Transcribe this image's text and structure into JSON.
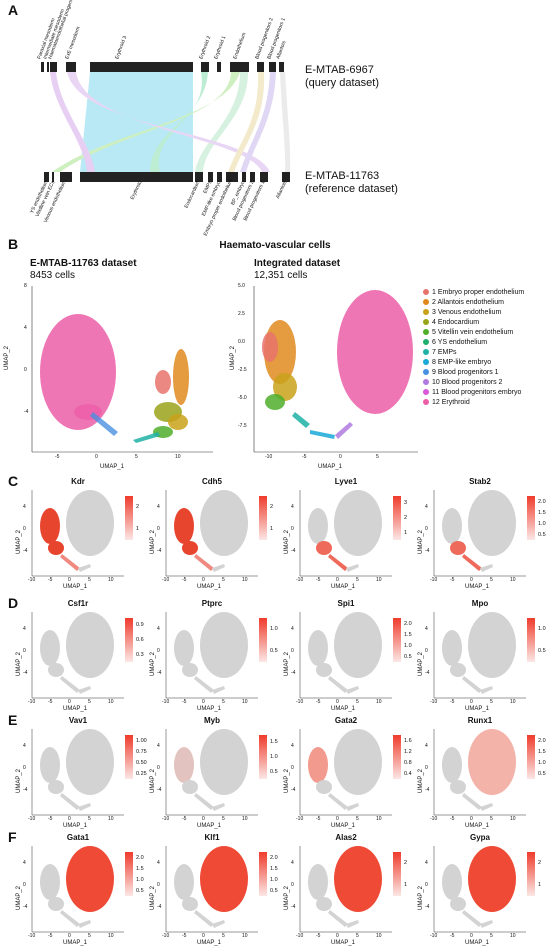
{
  "panelA": {
    "letter": "A",
    "query_label": "E-MTAB-6967\n(query dataset)",
    "query_line1": "E-MTAB-6967",
    "query_line2": "(query dataset)",
    "ref_line1": "E-MTAB-11763",
    "ref_line2": "(reference dataset)",
    "top_labels": [
      "Paraxial mesoderm",
      "Intermediate mesoderm",
      "Haematoendothelial progenitors",
      "ExE mesoderm",
      "Erythroid 3",
      "Erythroid 2",
      "Erythroid 1",
      "Endothelium",
      "Blood progenitors 2",
      "Blood progenitors 1",
      "Allantois"
    ],
    "bottom_labels": [
      "YS endothelium",
      "Vitelline vein ECs",
      "Venous endothelium",
      "Erythroid",
      "Endocardium",
      "EMPs",
      "EMP-like embryo",
      "Embryo proper endothelium",
      "BP_embryo",
      "Blood progenitors 2",
      "Blood progenitors 1",
      "Allantois"
    ]
  },
  "panelB": {
    "letter": "B",
    "title": "Haemato-vascular cells",
    "left_title": "E-MTAB-11763 dataset",
    "left_sub": "8453 cells",
    "right_title": "Integrated dataset",
    "right_sub": "12,351 cells",
    "xlabel": "UMAP_1",
    "ylabel": "UMAP_2",
    "legend": [
      {
        "label": "1 Embryo proper endothelium",
        "color": "#e8736c"
      },
      {
        "label": "2 Allantois endothelium",
        "color": "#e08a1e"
      },
      {
        "label": "3 Venous endothelium",
        "color": "#c9a21a"
      },
      {
        "label": "4 Endocardium",
        "color": "#9aa31a"
      },
      {
        "label": "5 Vitellin vein endothelium",
        "color": "#4fae2a"
      },
      {
        "label": "6 YS endothelium",
        "color": "#1fae6a"
      },
      {
        "label": "7 EMPs",
        "color": "#1fb2a6"
      },
      {
        "label": "8 EMP-like embryo",
        "color": "#1aa8d8"
      },
      {
        "label": "9 Blood progenitors 1",
        "color": "#4a90e0"
      },
      {
        "label": "10 Blood progenitors 2",
        "color": "#b07ae0"
      },
      {
        "label": "11 Blood progenitors embryo",
        "color": "#d85ad8"
      },
      {
        "label": "12 Erythroid",
        "color": "#ec5ea8"
      }
    ],
    "left_xticks": [
      "-5",
      "0",
      "5",
      "10"
    ],
    "left_yticks": [
      "8",
      "4",
      "0",
      "-4"
    ],
    "right_xticks": [
      "-10",
      "-5",
      "0",
      "5"
    ],
    "right_yticks": [
      "5.0",
      "2.5",
      "0.0",
      "-2.5",
      "-5.0",
      "-7.5"
    ]
  },
  "featureRows": [
    {
      "letter": "C",
      "genes": [
        {
          "name": "Kdr",
          "ticks": [
            "2",
            "1"
          ]
        },
        {
          "name": "Cdh5",
          "ticks": [
            "2",
            "1"
          ]
        },
        {
          "name": "Lyve1",
          "ticks": [
            "3",
            "2",
            "1"
          ]
        },
        {
          "name": "Stab2",
          "ticks": [
            "2.0",
            "1.5",
            "1.0",
            "0.5"
          ]
        }
      ]
    },
    {
      "letter": "D",
      "genes": [
        {
          "name": "Csf1r",
          "ticks": [
            "0.9",
            "0.6",
            "0.3"
          ]
        },
        {
          "name": "Ptprc",
          "ticks": [
            "1.0",
            "0.5"
          ]
        },
        {
          "name": "Spi1",
          "ticks": [
            "2.0",
            "1.5",
            "1.0",
            "0.5"
          ]
        },
        {
          "name": "Mpo",
          "ticks": [
            "1.0",
            "0.5"
          ]
        }
      ]
    },
    {
      "letter": "E",
      "genes": [
        {
          "name": "Vav1",
          "ticks": [
            "1.00",
            "0.75",
            "0.50",
            "0.25"
          ]
        },
        {
          "name": "Myb",
          "ticks": [
            "1.5",
            "1.0",
            "0.5"
          ]
        },
        {
          "name": "Gata2",
          "ticks": [
            "1.6",
            "1.2",
            "0.8",
            "0.4"
          ]
        },
        {
          "name": "Runx1",
          "ticks": [
            "2.0",
            "1.5",
            "1.0",
            "0.5"
          ]
        }
      ]
    },
    {
      "letter": "F",
      "genes": [
        {
          "name": "Gata1",
          "ticks": [
            "2.0",
            "1.5",
            "1.0",
            "0.5"
          ]
        },
        {
          "name": "Klf1",
          "ticks": [
            "2.0",
            "1.5",
            "1.0",
            "0.5"
          ]
        },
        {
          "name": "Alas2",
          "ticks": [
            "2",
            "1"
          ]
        },
        {
          "name": "Gypa",
          "ticks": [
            "2",
            "1"
          ]
        }
      ]
    }
  ],
  "feature_xticks": [
    "-10",
    "-5",
    "0",
    "5",
    "10"
  ],
  "feature_yticks": [
    "4",
    "0",
    "-4"
  ],
  "feature_xlabel": "UMAP_1",
  "feature_ylabel": "UMAP_2"
}
